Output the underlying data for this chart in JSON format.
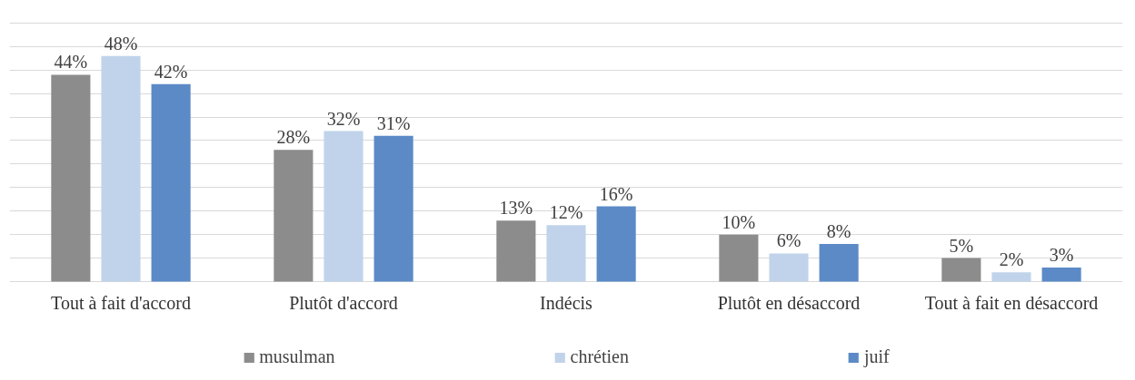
{
  "chart_data": {
    "type": "bar",
    "categories": [
      "Tout à fait d'accord",
      "Plutôt d'accord",
      "Indécis",
      "Plutôt en désaccord",
      "Tout à fait en désaccord"
    ],
    "series": [
      {
        "name": "musulman",
        "color": "#8c8c8c",
        "values": [
          44,
          28,
          13,
          10,
          5
        ],
        "value_labels": [
          "44%",
          "28%",
          "13%",
          "10%",
          "5%"
        ]
      },
      {
        "name": "chrétien",
        "color": "#c0d3ea",
        "values": [
          48,
          32,
          12,
          6,
          2
        ],
        "value_labels": [
          "48%",
          "32%",
          "12%",
          "6%",
          "2%"
        ]
      },
      {
        "name": "juif",
        "color": "#5b8ac6",
        "values": [
          42,
          31,
          16,
          8,
          3
        ],
        "value_labels": [
          "42%",
          "31%",
          "16%",
          "8%",
          "3%"
        ]
      }
    ],
    "yticks": [
      {
        "value": 0,
        "label": null
      },
      {
        "value": 5,
        "label": null
      },
      {
        "value": 10,
        "label": null
      },
      {
        "value": 15,
        "label": null
      },
      {
        "value": 20,
        "label": null
      },
      {
        "value": 25,
        "label": null
      },
      {
        "value": 30,
        "label": null
      },
      {
        "value": 35,
        "label": null
      },
      {
        "value": 40,
        "label": null
      },
      {
        "value": 45,
        "label": null
      },
      {
        "value": 50,
        "label": null
      },
      {
        "value": 55,
        "label": null
      }
    ],
    "tick_labels": "x",
    "grid": "y",
    "legend": "bottom"
  }
}
